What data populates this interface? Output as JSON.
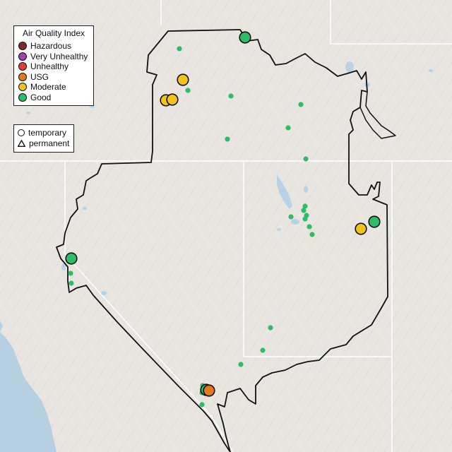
{
  "legend": {
    "title": "Air Quality Index",
    "categories": [
      {
        "label": "Hazardous",
        "color": "#7e2a2a"
      },
      {
        "label": "Very Unhealthy",
        "color": "#9b45b4"
      },
      {
        "label": "Unhealthy",
        "color": "#e23d3d"
      },
      {
        "label": "USG",
        "color": "#e37a1e"
      },
      {
        "label": "Moderate",
        "color": "#f2c318"
      },
      {
        "label": "Good",
        "color": "#2dbd66"
      }
    ]
  },
  "monitor_legend": {
    "items": [
      {
        "label": "temporary",
        "shape": "circle"
      },
      {
        "label": "permanent",
        "shape": "triangle"
      }
    ]
  },
  "colors": {
    "land": "#e9e6e2",
    "ocean": "#b6cfe1",
    "lakes": "#b8d3e6",
    "outline": "#111111",
    "state_lines": "#ffffff"
  }
}
